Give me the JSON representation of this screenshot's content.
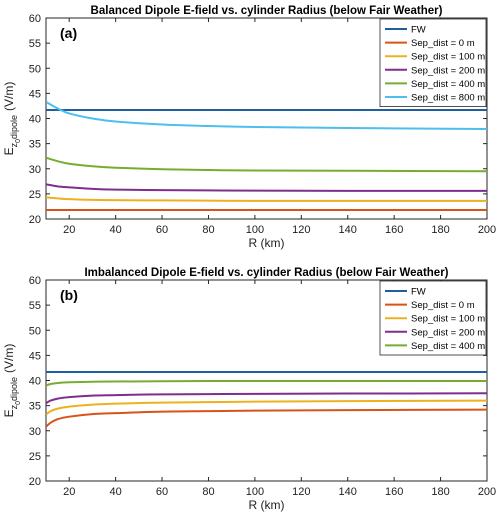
{
  "chart_data": [
    {
      "type": "line",
      "title": "Balanced Dipole E-field vs. cylinder Radius (below Fair Weather)",
      "panel_label": "(a)",
      "xlabel": "R (km)",
      "ylabel_main": "E",
      "ylabel_sub": "z",
      "ylabel_subsub": "0",
      "ylabel_subsub2": "dipole",
      "ylabel_unit": "(V/m)",
      "xlim": [
        10,
        200
      ],
      "ylim": [
        20,
        60
      ],
      "xticks": [
        20,
        40,
        60,
        80,
        100,
        120,
        140,
        160,
        180,
        200
      ],
      "yticks": [
        20,
        25,
        30,
        35,
        40,
        45,
        50,
        55,
        60
      ],
      "grid": false,
      "legend_position": "top-right",
      "series": [
        {
          "name": "FW",
          "color": "#1f5f9e",
          "x": [
            10,
            200
          ],
          "y": [
            41.7,
            41.7
          ]
        },
        {
          "name": "Sep_dist = 0 m",
          "color": "#d95319",
          "x": [
            10,
            200
          ],
          "y": [
            21.8,
            21.8
          ]
        },
        {
          "name": "Sep_dist = 100 m",
          "color": "#edb120",
          "x": [
            10,
            15,
            20,
            30,
            40,
            60,
            80,
            100,
            140,
            200
          ],
          "y": [
            24.3,
            24.1,
            23.95,
            23.8,
            23.75,
            23.7,
            23.65,
            23.6,
            23.6,
            23.6
          ]
        },
        {
          "name": "Sep_dist = 200 m",
          "color": "#7e2f8e",
          "x": [
            10,
            15,
            20,
            30,
            40,
            60,
            80,
            100,
            140,
            200
          ],
          "y": [
            26.9,
            26.5,
            26.3,
            26.0,
            25.85,
            25.75,
            25.7,
            25.65,
            25.6,
            25.6
          ]
        },
        {
          "name": "Sep_dist = 400 m",
          "color": "#77ac30",
          "x": [
            10,
            15,
            20,
            30,
            40,
            60,
            80,
            100,
            140,
            200
          ],
          "y": [
            32.2,
            31.5,
            31.0,
            30.5,
            30.2,
            29.9,
            29.75,
            29.65,
            29.6,
            29.5
          ]
        },
        {
          "name": "Sep_dist = 800 m",
          "color": "#4dbeee",
          "x": [
            10,
            15,
            20,
            30,
            40,
            60,
            80,
            100,
            140,
            200
          ],
          "y": [
            43.3,
            42.0,
            41.0,
            40.0,
            39.4,
            38.8,
            38.5,
            38.3,
            38.1,
            37.9
          ]
        }
      ]
    },
    {
      "type": "line",
      "title": "Imbalanced Dipole E-field vs. cylinder Radius (below Fair Weather)",
      "panel_label": "(b)",
      "xlabel": "R (km)",
      "ylabel_main": "E",
      "ylabel_sub": "z",
      "ylabel_subsub": "0",
      "ylabel_subsub2": "dipole",
      "ylabel_unit": "(V/m)",
      "xlim": [
        10,
        200
      ],
      "ylim": [
        20,
        60
      ],
      "xticks": [
        20,
        40,
        60,
        80,
        100,
        120,
        140,
        160,
        180,
        200
      ],
      "yticks": [
        20,
        25,
        30,
        35,
        40,
        45,
        50,
        55,
        60
      ],
      "grid": false,
      "legend_position": "top-right",
      "series": [
        {
          "name": "FW",
          "color": "#1f5f9e",
          "x": [
            10,
            200
          ],
          "y": [
            41.7,
            41.7
          ]
        },
        {
          "name": "Sep_dist = 0 m",
          "color": "#d95319",
          "x": [
            10,
            12,
            15,
            20,
            30,
            40,
            60,
            80,
            100,
            140,
            200
          ],
          "y": [
            30.8,
            31.6,
            32.3,
            32.8,
            33.3,
            33.5,
            33.8,
            33.9,
            34.0,
            34.1,
            34.2
          ]
        },
        {
          "name": "Sep_dist = 100 m",
          "color": "#edb120",
          "x": [
            10,
            12,
            15,
            20,
            30,
            40,
            60,
            80,
            100,
            140,
            200
          ],
          "y": [
            33.2,
            33.9,
            34.4,
            34.8,
            35.2,
            35.4,
            35.6,
            35.7,
            35.8,
            35.9,
            36.0
          ]
        },
        {
          "name": "Sep_dist = 200 m",
          "color": "#7e2f8e",
          "x": [
            10,
            12,
            15,
            20,
            30,
            40,
            60,
            80,
            100,
            140,
            200
          ],
          "y": [
            35.5,
            36.0,
            36.4,
            36.7,
            37.0,
            37.1,
            37.25,
            37.3,
            37.35,
            37.4,
            37.45
          ]
        },
        {
          "name": "Sep_dist = 400 m",
          "color": "#77ac30",
          "x": [
            10,
            12,
            15,
            20,
            30,
            40,
            60,
            80,
            100,
            140,
            200
          ],
          "y": [
            39.0,
            39.3,
            39.5,
            39.65,
            39.75,
            39.8,
            39.85,
            39.9,
            39.9,
            39.9,
            39.9
          ]
        }
      ]
    }
  ]
}
